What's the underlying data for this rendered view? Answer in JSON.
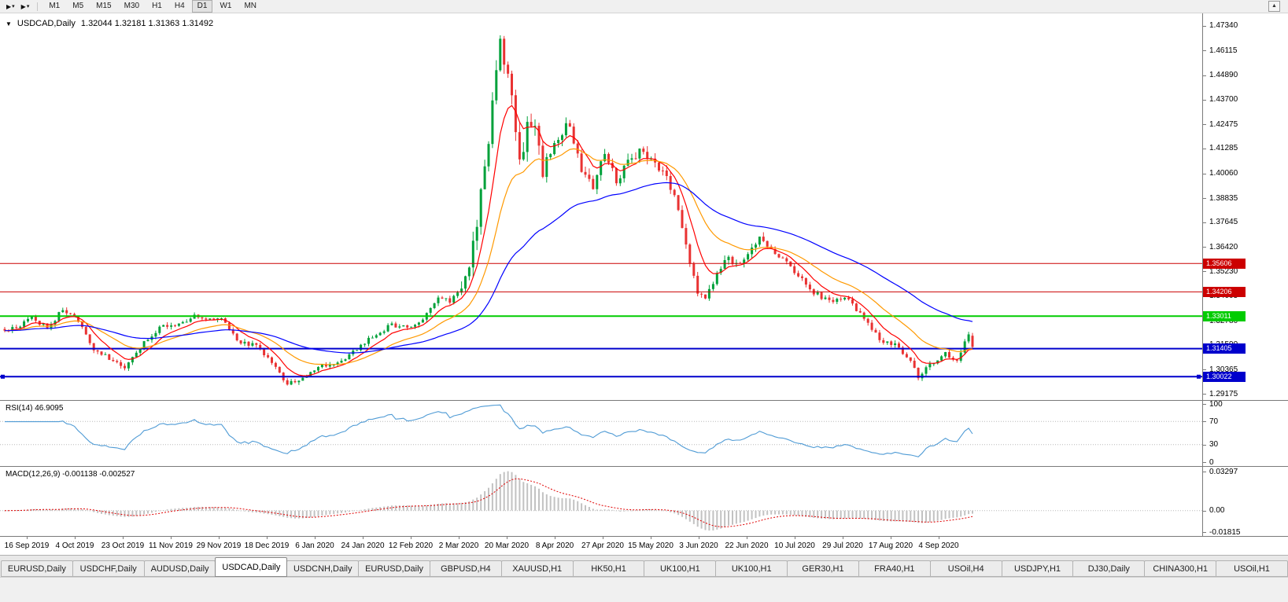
{
  "toolbar": {
    "icons": [
      {
        "name": "cursor-tool-icon",
        "glyph": "▶"
      },
      {
        "name": "chart-type-icon",
        "glyph": "▶"
      }
    ],
    "caret_glyph": "▾",
    "scroll_up_glyph": "▲",
    "timeframes": [
      "M1",
      "M5",
      "M15",
      "M30",
      "H1",
      "H4",
      "D1",
      "W1",
      "MN"
    ],
    "active_timeframe": "D1"
  },
  "chart": {
    "symbol_dropdown_glyph": "▼",
    "symbol_title": "USDCAD,Daily",
    "ohlc": "1.32044 1.32181 1.31363 1.31492",
    "price_axis_labels": [
      "1.47340",
      "1.46115",
      "1.44890",
      "1.43700",
      "1.42475",
      "1.41285",
      "1.40060",
      "1.38835",
      "1.37645",
      "1.36420",
      "1.35230",
      "1.34005",
      "1.32780",
      "1.31590",
      "1.30365",
      "1.29175"
    ],
    "hlines": [
      {
        "price": "1.35606",
        "value": 1.35606,
        "color": "#cc0000",
        "width": 1
      },
      {
        "price": "1.34206",
        "value": 1.34206,
        "color": "#cc0000",
        "width": 1
      },
      {
        "price": "1.33011",
        "value": 1.33011,
        "color": "#00cc00",
        "width": 2
      },
      {
        "price": "1.31405",
        "value": 1.31405,
        "color": "#0000cc",
        "width": 2
      },
      {
        "price": "1.30022",
        "value": 1.30022,
        "color": "#0000cc",
        "width": 2
      }
    ],
    "date_labels": [
      "16 Sep 2019",
      "4 Oct 2019",
      "23 Oct 2019",
      "11 Nov 2019",
      "29 Nov 2019",
      "18 Dec 2019",
      "6 Jan 2020",
      "24 Jan 2020",
      "12 Feb 2020",
      "2 Mar 2020",
      "20 Mar 2020",
      "8 Apr 2020",
      "27 Apr 2020",
      "15 May 2020",
      "3 Jun 2020",
      "22 Jun 2020",
      "10 Jul 2020",
      "29 Jul 2020",
      "17 Aug 2020",
      "4 Sep 2020"
    ]
  },
  "rsi": {
    "label": "RSI(14) 46.9095",
    "value": 46.9095,
    "axis_labels": [
      "100",
      "70",
      "30",
      "0"
    ],
    "level_lines": [
      70,
      30
    ],
    "line_color": "#4f9bd5"
  },
  "macd": {
    "label": "MACD(12,26,9) -0.001138 -0.002527",
    "main_value": -0.001138,
    "signal_value": -0.002527,
    "axis_labels": [
      "0.03297",
      "0.00",
      "-0.01815"
    ],
    "histogram_color": "#c2c2c2",
    "signal_color": "#e00000"
  },
  "tabs": {
    "items": [
      "EURUSD,Daily",
      "USDCHF,Daily",
      "AUDUSD,Daily",
      "USDCAD,Daily",
      "USDCNH,Daily",
      "EURUSD,Daily",
      "GBPUSD,H4",
      "XAUUSD,H1",
      "HK50,H1",
      "UK100,H1",
      "UK100,H1",
      "GER30,H1",
      "FRA40,H1",
      "USOil,H4",
      "USDJPY,H1",
      "DJ30,Daily",
      "CHINA300,H1",
      "USOil,H1"
    ],
    "active_index": 3
  },
  "chart_data": {
    "type": "candlestick",
    "symbol": "USDCAD",
    "timeframe": "Daily",
    "bars": 251,
    "price_max": 1.4795,
    "price_min": 1.2887,
    "up_color": "#00a13a",
    "down_color": "#e93232",
    "anchors": [
      [
        0,
        1.323
      ],
      [
        3,
        1.3245
      ],
      [
        7,
        1.33
      ],
      [
        11,
        1.324
      ],
      [
        15,
        1.3335
      ],
      [
        19,
        1.328
      ],
      [
        23,
        1.314
      ],
      [
        28,
        1.3075
      ],
      [
        31,
        1.305
      ],
      [
        36,
        1.317
      ],
      [
        40,
        1.324
      ],
      [
        45,
        1.327
      ],
      [
        50,
        1.3305
      ],
      [
        53,
        1.329
      ],
      [
        57,
        1.3275
      ],
      [
        60,
        1.317
      ],
      [
        65,
        1.316
      ],
      [
        69,
        1.308
      ],
      [
        73,
        1.2965
      ],
      [
        77,
        1.2995
      ],
      [
        82,
        1.306
      ],
      [
        87,
        1.3075
      ],
      [
        90,
        1.312
      ],
      [
        95,
        1.32
      ],
      [
        100,
        1.326
      ],
      [
        104,
        1.3245
      ],
      [
        108,
        1.329
      ],
      [
        112,
        1.34
      ],
      [
        115,
        1.3375
      ],
      [
        118,
        1.343
      ],
      [
        121,
        1.364
      ],
      [
        123,
        1.389
      ],
      [
        125,
        1.416
      ],
      [
        127,
        1.45
      ],
      [
        128,
        1.464
      ],
      [
        129,
        1.451
      ],
      [
        131,
        1.442
      ],
      [
        133,
        1.406
      ],
      [
        135,
        1.423
      ],
      [
        137,
        1.428
      ],
      [
        139,
        1.401
      ],
      [
        143,
        1.418
      ],
      [
        146,
        1.4255
      ],
      [
        149,
        1.399
      ],
      [
        152,
        1.3945
      ],
      [
        155,
        1.409
      ],
      [
        158,
        1.3965
      ],
      [
        161,
        1.405
      ],
      [
        164,
        1.412
      ],
      [
        168,
        1.4075
      ],
      [
        171,
        1.398
      ],
      [
        174,
        1.382
      ],
      [
        177,
        1.355
      ],
      [
        179,
        1.343
      ],
      [
        181,
        1.339
      ],
      [
        183,
        1.347
      ],
      [
        186,
        1.359
      ],
      [
        189,
        1.3555
      ],
      [
        192,
        1.362
      ],
      [
        195,
        1.368
      ],
      [
        198,
        1.3625
      ],
      [
        201,
        1.358
      ],
      [
        205,
        1.35
      ],
      [
        209,
        1.3415
      ],
      [
        214,
        1.337
      ],
      [
        218,
        1.339
      ],
      [
        221,
        1.331
      ],
      [
        224,
        1.3235
      ],
      [
        226,
        1.3185
      ],
      [
        230,
        1.316
      ],
      [
        234,
        1.309
      ],
      [
        236,
        1.3
      ],
      [
        239,
        1.306
      ],
      [
        243,
        1.312
      ],
      [
        246,
        1.3085
      ],
      [
        249,
        1.3204
      ],
      [
        250,
        1.3149
      ]
    ],
    "volatility_zones": [
      {
        "from": 0,
        "to": 117,
        "v": 0.0026
      },
      {
        "from": 118,
        "to": 141,
        "v": 0.009
      },
      {
        "from": 142,
        "to": 175,
        "v": 0.0056
      },
      {
        "from": 176,
        "to": 196,
        "v": 0.0042
      },
      {
        "from": 197,
        "to": 250,
        "v": 0.0028
      }
    ],
    "last_candle": {
      "o": 1.32044,
      "h": 1.32181,
      "l": 1.31363,
      "c": 1.31492
    },
    "moving_averages": [
      {
        "period": 8,
        "color": "#ff0000"
      },
      {
        "period": 21,
        "color": "#ff9900"
      },
      {
        "period": 55,
        "color": "#0000ff"
      }
    ],
    "macd_scale": {
      "max": 0.037,
      "min": -0.0215
    }
  }
}
